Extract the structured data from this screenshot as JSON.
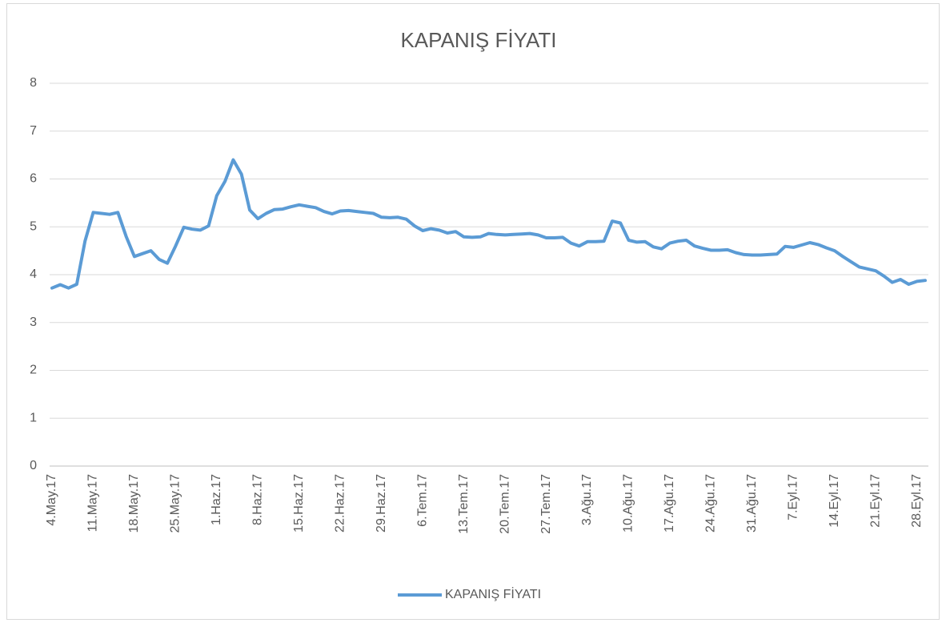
{
  "chart_data": {
    "type": "line",
    "title": "KAPANIŞ FİYATI",
    "categories": [
      "4.May.17",
      null,
      null,
      null,
      null,
      "11.May.17",
      null,
      null,
      null,
      null,
      "18.May.17",
      null,
      null,
      null,
      null,
      "25.May.17",
      null,
      null,
      null,
      null,
      "1.Haz.17",
      null,
      null,
      null,
      null,
      "8.Haz.17",
      null,
      null,
      null,
      null,
      "15.Haz.17",
      null,
      null,
      null,
      null,
      "22.Haz.17",
      null,
      null,
      null,
      null,
      "29.Haz.17",
      null,
      null,
      null,
      null,
      "6.Tem.17",
      null,
      null,
      null,
      null,
      "13.Tem.17",
      null,
      null,
      null,
      null,
      "20.Tem.17",
      null,
      null,
      null,
      null,
      "27.Tem.17",
      null,
      null,
      null,
      null,
      "3.Ağu.17",
      null,
      null,
      null,
      null,
      "10.Ağu.17",
      null,
      null,
      null,
      null,
      "17.Ağu.17",
      null,
      null,
      null,
      null,
      "24.Ağu.17",
      null,
      null,
      null,
      null,
      "31.Ağu.17",
      null,
      null,
      null,
      null,
      "7.Eyl.17",
      null,
      null,
      null,
      null,
      "14.Eyl.17",
      null,
      null,
      null,
      null,
      "21.Eyl.17",
      null,
      null,
      null,
      null,
      "28.Eyl.17",
      null
    ],
    "series": [
      {
        "name": "KAPANIŞ FİYATI",
        "color": "#5b9bd5",
        "values": [
          3.72,
          3.79,
          3.72,
          3.8,
          4.7,
          5.3,
          5.28,
          5.26,
          5.3,
          4.8,
          4.38,
          4.44,
          4.5,
          4.32,
          4.24,
          4.6,
          4.99,
          4.95,
          4.93,
          5.02,
          5.65,
          5.95,
          6.4,
          6.1,
          5.35,
          5.17,
          5.28,
          5.36,
          5.37,
          5.42,
          5.46,
          5.43,
          5.4,
          5.32,
          5.27,
          5.33,
          5.34,
          5.32,
          5.3,
          5.28,
          5.2,
          5.19,
          5.2,
          5.16,
          5.02,
          4.92,
          4.96,
          4.93,
          4.87,
          4.9,
          4.79,
          4.78,
          4.79,
          4.86,
          4.84,
          4.83,
          4.84,
          4.85,
          4.86,
          4.83,
          4.77,
          4.77,
          4.78,
          4.66,
          4.6,
          4.69,
          4.69,
          4.7,
          5.12,
          5.08,
          4.72,
          4.68,
          4.69,
          4.58,
          4.54,
          4.66,
          4.7,
          4.72,
          4.6,
          4.55,
          4.51,
          4.51,
          4.52,
          4.46,
          4.42,
          4.41,
          4.41,
          4.42,
          4.43,
          4.59,
          4.57,
          4.62,
          4.67,
          4.63,
          4.56,
          4.5,
          4.38,
          4.27,
          4.16,
          4.12,
          4.08,
          3.97,
          3.84,
          3.9,
          3.8,
          3.86,
          3.88
        ]
      }
    ],
    "ylim": [
      0,
      8
    ],
    "yticks": [
      0,
      1,
      2,
      3,
      4,
      5,
      6,
      7,
      8
    ],
    "grid": true,
    "legend": "bottom"
  }
}
